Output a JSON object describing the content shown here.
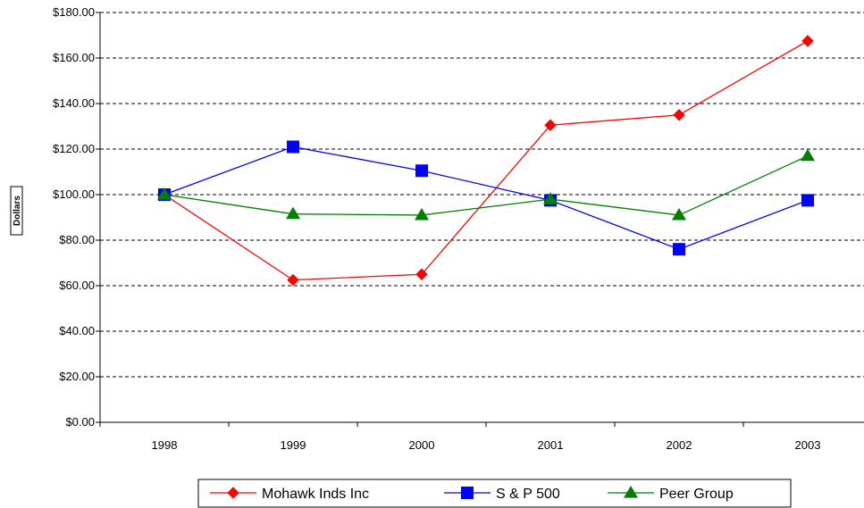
{
  "chart_data": {
    "type": "line",
    "title": "",
    "xlabel": "",
    "ylabel": "Dollars",
    "categories": [
      "1998",
      "1999",
      "2000",
      "2001",
      "2002",
      "2003"
    ],
    "ylim": [
      0,
      180
    ],
    "ytick_labels": [
      "$0.00",
      "$20.00",
      "$40.00",
      "$60.00",
      "$80.00",
      "$100.00",
      "$120.00",
      "$140.00",
      "$160.00",
      "$180.00"
    ],
    "grid": "horizontal dashed",
    "legend_position": "bottom",
    "series": [
      {
        "name": "Mohawk Inds Inc",
        "color": "#ff0000",
        "marker": "diamond",
        "values": [
          100,
          62.5,
          65,
          130.5,
          135,
          167.5
        ]
      },
      {
        "name": "S & P 500",
        "color": "#0000ff",
        "marker": "square",
        "values": [
          100,
          121,
          110.5,
          97.5,
          76,
          97.5
        ]
      },
      {
        "name": "Peer Group",
        "color": "#007f00",
        "marker": "triangle",
        "values": [
          100,
          91.5,
          91,
          98,
          91,
          117
        ]
      }
    ]
  }
}
